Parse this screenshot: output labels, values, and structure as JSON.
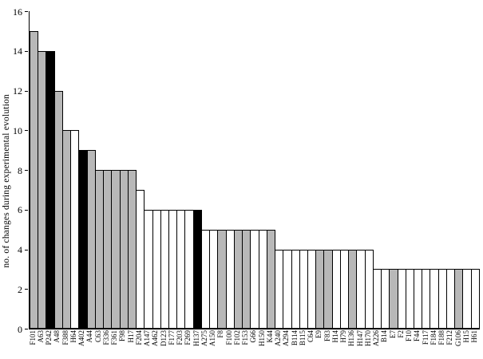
{
  "figure": {
    "background": "#ffffff"
  },
  "chart_data": {
    "type": "bar",
    "title": "",
    "xlabel": "",
    "ylabel": "no. of changes during experimental evolution",
    "ylim": [
      0,
      16
    ],
    "yticks": [
      0,
      2,
      4,
      6,
      8,
      10,
      12,
      14,
      16
    ],
    "grid": false,
    "legend": false,
    "categories": [
      "F101",
      "A63",
      "P242",
      "A48",
      "F388",
      "H64",
      "A402",
      "A44",
      "C63",
      "F336",
      "F361",
      "F98",
      "H17",
      "F204",
      "A147",
      "A462",
      "D123",
      "F177",
      "F203",
      "F269",
      "H137",
      "A275",
      "A150",
      "F8",
      "F100",
      "F102",
      "F153",
      "G66",
      "H150",
      "K44",
      "A240",
      "A294",
      "B114",
      "B115",
      "C64",
      "E9",
      "F83",
      "H14",
      "H79",
      "H136",
      "H147",
      "H170",
      "A226",
      "B14",
      "E7",
      "F2",
      "F10",
      "F44",
      "F117",
      "F184",
      "F188",
      "F212",
      "G106",
      "H15",
      "H61"
    ],
    "values": [
      15,
      14,
      14,
      12,
      10,
      10,
      9,
      9,
      8,
      8,
      8,
      8,
      8,
      7,
      6,
      6,
      6,
      6,
      6,
      6,
      6,
      5,
      5,
      5,
      5,
      5,
      5,
      5,
      5,
      5,
      4,
      4,
      4,
      4,
      4,
      4,
      4,
      4,
      4,
      4,
      4,
      4,
      3,
      3,
      3,
      3,
      3,
      3,
      3,
      3,
      3,
      3,
      3,
      3,
      3
    ],
    "bar_fills": [
      "gray",
      "gray",
      "black",
      "gray",
      "gray",
      "white",
      "black",
      "gray",
      "gray",
      "gray",
      "gray",
      "gray",
      "gray",
      "white",
      "white",
      "white",
      "white",
      "white",
      "white",
      "white",
      "black",
      "white",
      "white",
      "gray",
      "white",
      "gray",
      "gray",
      "white",
      "white",
      "gray",
      "white",
      "white",
      "white",
      "white",
      "white",
      "gray",
      "gray",
      "white",
      "white",
      "gray",
      "white",
      "white",
      "white",
      "white",
      "gray",
      "white",
      "white",
      "white",
      "white",
      "white",
      "white",
      "white",
      "gray",
      "white",
      "white"
    ],
    "colors": {
      "gray": "#b8b8b8",
      "black": "#000000",
      "white": "#ffffff",
      "axis": "#000000"
    }
  }
}
